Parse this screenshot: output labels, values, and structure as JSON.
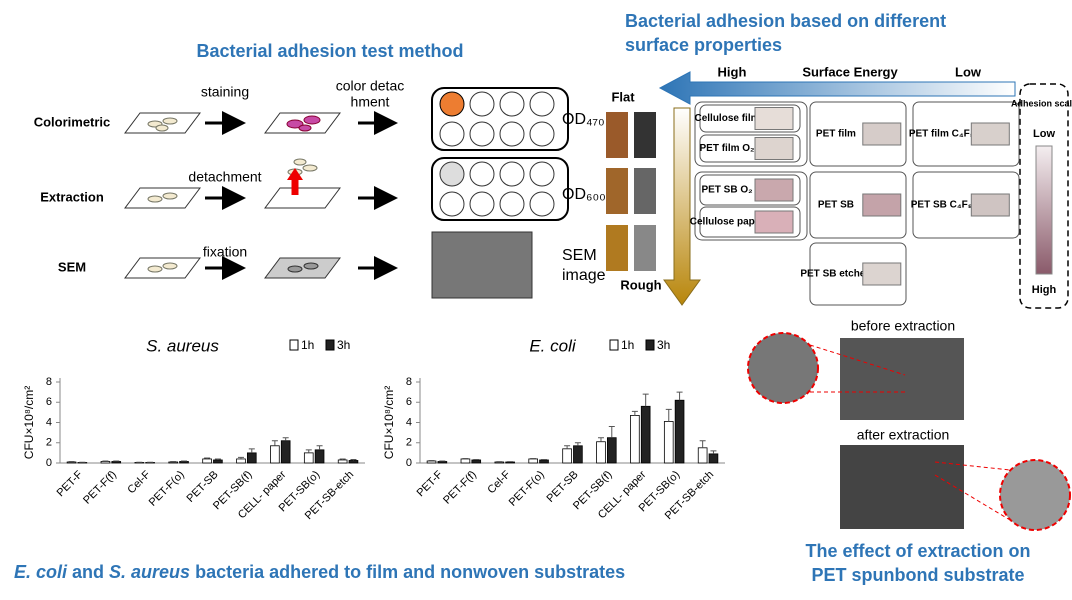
{
  "method": {
    "title": "Bacterial adhesion test method",
    "rows": [
      {
        "label": "Colorimetric",
        "step": [
          "staining"
        ],
        "step2": [
          "color detac",
          "hment"
        ],
        "result": [
          "OD₄₇₀"
        ]
      },
      {
        "label": "Extraction",
        "step": [
          "detachment"
        ],
        "result": [
          "OD₆₀₀"
        ]
      },
      {
        "label": "SEM",
        "step": [
          "fixation"
        ],
        "result": [
          "SEM",
          "image"
        ]
      }
    ]
  },
  "surface": {
    "title": [
      "Bacterial adhesion based on different",
      "surface properties"
    ],
    "energy_axis": {
      "high": "High",
      "label": "Surface Energy",
      "low": "Low"
    },
    "roughness_axis": {
      "flat": "Flat",
      "rough": "Rough"
    },
    "boxes": [
      "Cellulose film",
      "PET film O₂",
      "PET SB O₂",
      "Cellulose paper",
      "PET film",
      "PET SB",
      "PET SB etched",
      "PET film C₄F₈",
      "PET SB C₄F₈"
    ],
    "scale": {
      "title": "Adhesion scale",
      "low": "Low",
      "high": "High"
    }
  },
  "extraction": {
    "before": "before extraction",
    "after": "after extraction",
    "caption": [
      "The effect of extraction on",
      "PET spunbond substrate"
    ]
  },
  "caption": [
    {
      "text": "E. coli",
      "italic": true
    },
    {
      "text": " and ",
      "italic": false
    },
    {
      "text": "S. aureus",
      "italic": true
    },
    {
      "text": " bacteria adhered to film and nonwoven substrates",
      "italic": false
    }
  ],
  "chart_data": [
    {
      "type": "bar",
      "title": "S. aureus",
      "y_label": "CFU×10⁸/cm²",
      "categories": [
        "PET-F",
        "PET-F(f)",
        "Cel-F",
        "PET-F(o)",
        "PET-SB",
        "PET-SB(f)",
        "CELL- paper",
        "PET-SB(o)",
        "PET-SB-etch"
      ],
      "series": [
        {
          "name": "1h",
          "color": "#ffffff",
          "values": [
            0.1,
            0.15,
            0.05,
            0.1,
            0.4,
            0.4,
            1.7,
            1.0,
            0.3
          ],
          "errors": [
            0.05,
            0.05,
            0.02,
            0.05,
            0.1,
            0.15,
            0.5,
            0.3,
            0.1
          ]
        },
        {
          "name": "3h",
          "color": "#222222",
          "values": [
            0.05,
            0.15,
            0.05,
            0.15,
            0.3,
            1.0,
            2.2,
            1.3,
            0.25
          ],
          "errors": [
            0.03,
            0.05,
            0.02,
            0.05,
            0.1,
            0.4,
            0.3,
            0.4,
            0.1
          ]
        }
      ],
      "ylim": [
        0,
        8
      ],
      "yticks": [
        0,
        2,
        4,
        6,
        8
      ]
    },
    {
      "type": "bar",
      "title": "E. coli",
      "y_label": "CFU×10⁸/cm²",
      "categories": [
        "PET-F",
        "PET-F(f)",
        "Cel-F",
        "PET-F(o)",
        "PET-SB",
        "PET-SB(f)",
        "CELL- paper",
        "PET-SB(o)",
        "PET-SB-etch"
      ],
      "series": [
        {
          "name": "1h",
          "color": "#ffffff",
          "values": [
            0.2,
            0.4,
            0.1,
            0.4,
            1.4,
            2.1,
            4.7,
            4.1,
            1.5
          ],
          "errors": [
            0.05,
            0.05,
            0.03,
            0.05,
            0.3,
            0.4,
            0.4,
            1.2,
            0.7
          ]
        },
        {
          "name": "3h",
          "color": "#222222",
          "values": [
            0.15,
            0.3,
            0.1,
            0.3,
            1.7,
            2.5,
            5.6,
            6.2,
            0.9
          ],
          "errors": [
            0.05,
            0.05,
            0.03,
            0.05,
            0.3,
            1.1,
            1.2,
            0.8,
            0.3
          ]
        }
      ],
      "ylim": [
        0,
        8
      ],
      "yticks": [
        0,
        2,
        4,
        6,
        8
      ]
    }
  ]
}
